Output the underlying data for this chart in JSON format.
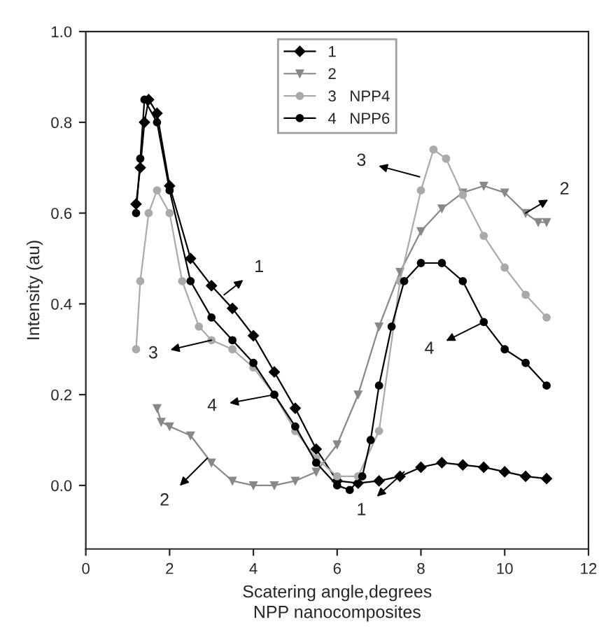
{
  "chart_data": {
    "type": "line",
    "xlabel": "Scatering angle,degrees",
    "ylabel": "Intensity (au)",
    "xlim": [
      0,
      12
    ],
    "xticks": [
      0,
      2,
      4,
      6,
      8,
      10,
      12
    ],
    "ylim": [
      -0.14,
      1.0
    ],
    "yticks": [
      {
        "value": 0.0,
        "label": "0.0"
      },
      {
        "value": 0.2,
        "label": "0.2"
      },
      {
        "value": 0.4,
        "label": "0.4"
      },
      {
        "value": 0.6,
        "label": "0.6"
      },
      {
        "value": 0.8,
        "label": "0.8"
      },
      {
        "value": 1.0,
        "label": "1.0"
      }
    ],
    "grid": false,
    "legend": "top",
    "line_style": "solid",
    "series": [
      {
        "name": "1",
        "color": "#000000",
        "marker": "diamond",
        "x": [
          1.2,
          1.3,
          1.4,
          1.5,
          1.7,
          2.0,
          2.5,
          3.0,
          3.5,
          4.0,
          4.5,
          5.0,
          5.5,
          6.0,
          6.5,
          7.0,
          7.5,
          8.0,
          8.5,
          9.0,
          9.5,
          10.0,
          10.5,
          11.0
        ],
        "values": [
          0.62,
          0.7,
          0.8,
          0.85,
          0.82,
          0.66,
          0.5,
          0.44,
          0.39,
          0.33,
          0.25,
          0.17,
          0.08,
          0.01,
          0.005,
          0.01,
          0.02,
          0.04,
          0.05,
          0.045,
          0.04,
          0.03,
          0.02,
          0.015
        ]
      },
      {
        "name": "2",
        "color": "#888888",
        "marker": "triangle",
        "x": [
          1.7,
          1.8,
          2.0,
          2.5,
          3.0,
          3.5,
          4.0,
          4.5,
          5.0,
          5.5,
          6.0,
          6.5,
          7.0,
          7.5,
          8.0,
          8.5,
          9.0,
          9.5,
          10.0,
          10.5,
          10.8,
          11.0
        ],
        "values": [
          0.17,
          0.14,
          0.13,
          0.11,
          0.05,
          0.01,
          0.0,
          0.0,
          0.01,
          0.03,
          0.09,
          0.2,
          0.35,
          0.47,
          0.56,
          0.61,
          0.645,
          0.66,
          0.645,
          0.6,
          0.58,
          0.58
        ]
      },
      {
        "name": "3   NPP4",
        "color": "#aaaaaa",
        "marker": "circle",
        "x": [
          1.2,
          1.3,
          1.5,
          1.7,
          2.0,
          2.3,
          2.7,
          3.0,
          3.5,
          4.0,
          4.5,
          5.0,
          5.5,
          6.0,
          6.5,
          7.0,
          7.5,
          8.0,
          8.3,
          8.6,
          9.0,
          9.5,
          10.0,
          10.5,
          11.0
        ],
        "values": [
          0.3,
          0.45,
          0.6,
          0.65,
          0.6,
          0.45,
          0.35,
          0.32,
          0.3,
          0.26,
          0.2,
          0.12,
          0.06,
          0.02,
          0.02,
          0.12,
          0.45,
          0.65,
          0.74,
          0.72,
          0.64,
          0.55,
          0.48,
          0.42,
          0.37
        ]
      },
      {
        "name": "4   NPP6",
        "color": "#000000",
        "marker": "circle",
        "x": [
          1.2,
          1.3,
          1.4,
          1.7,
          2.0,
          2.5,
          3.0,
          3.5,
          4.0,
          4.5,
          5.0,
          5.5,
          6.0,
          6.3,
          6.6,
          6.8,
          7.0,
          7.3,
          7.6,
          8.0,
          8.5,
          9.0,
          9.5,
          10.0,
          10.5,
          11.0
        ],
        "values": [
          0.6,
          0.72,
          0.85,
          0.8,
          0.65,
          0.45,
          0.37,
          0.32,
          0.27,
          0.2,
          0.13,
          0.05,
          0.0,
          -0.01,
          0.02,
          0.1,
          0.22,
          0.35,
          0.45,
          0.49,
          0.49,
          0.45,
          0.36,
          0.3,
          0.27,
          0.22
        ]
      }
    ],
    "annotations": [
      {
        "text": "1",
        "x": 3.3,
        "y": 0.42
      },
      {
        "text": "3",
        "x": 3.0,
        "y": 0.32
      },
      {
        "text": "4",
        "x": 4.5,
        "y": 0.2
      },
      {
        "text": "2",
        "x": 2.9,
        "y": 0.06
      },
      {
        "text": "3",
        "x": 7.97,
        "y": 0.68
      },
      {
        "text": "2",
        "x": 10.5,
        "y": 0.6
      },
      {
        "text": "4",
        "x": 9.5,
        "y": 0.36
      },
      {
        "text": "1",
        "x": 7.6,
        "y": 0.03
      },
      "NPP nanocomposites"
    ]
  }
}
